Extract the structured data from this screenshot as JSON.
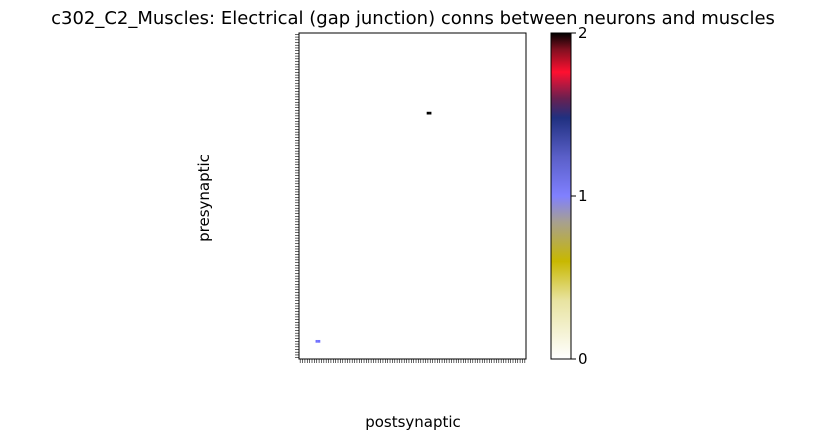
{
  "chart_data": {
    "type": "heatmap",
    "title": "c302_C2_Muscles: Electrical (gap junction) conns between neurons and muscles",
    "xlabel": "postsynaptic",
    "ylabel": "presynaptic",
    "colorbar": {
      "min": 0,
      "max": 2,
      "ticks": [
        "0",
        "1",
        "2"
      ]
    },
    "n_rows": 120,
    "n_cols": 96,
    "grid": false,
    "cells": [
      {
        "row": 29,
        "col": 54,
        "value": 2
      },
      {
        "row": 29,
        "col": 55,
        "value": 2
      },
      {
        "row": 113,
        "col": 7,
        "value": 1
      },
      {
        "row": 113,
        "col": 8,
        "value": 1
      }
    ],
    "colors": {
      "scale": [
        "#ffffff",
        "#c8b800",
        "#8080ff",
        "#203080",
        "#ff1030",
        "#000000"
      ],
      "value_1": "#7070ff",
      "value_2": "#000000"
    }
  }
}
